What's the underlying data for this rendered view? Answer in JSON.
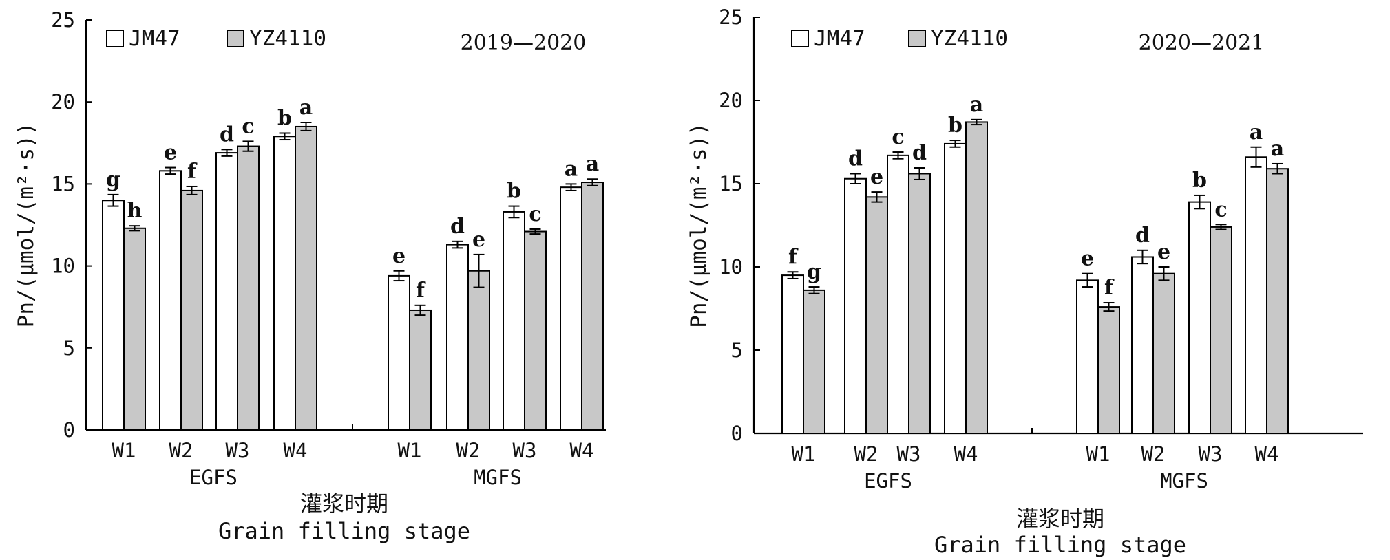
{
  "chart_data": [
    {
      "type": "bar",
      "title": "2019—2020",
      "ylabel": "Pn/(μmol/(m²·s))",
      "xlabel_cn": "灌浆时期",
      "xlabel": "Grain filling stage",
      "ylim": [
        0,
        25
      ],
      "yticks": [
        0,
        5,
        10,
        15,
        20,
        25
      ],
      "groups": [
        {
          "name": "EGFS",
          "categories": [
            "W1",
            "W2",
            "W3",
            "W4"
          ]
        },
        {
          "name": "MGFS",
          "categories": [
            "W1",
            "W2",
            "W3",
            "W4"
          ]
        }
      ],
      "series": [
        {
          "name": "JM47",
          "color": "#ffffff",
          "values": [
            14.0,
            15.8,
            16.9,
            17.9,
            9.4,
            11.3,
            13.3,
            14.8
          ],
          "errors": [
            0.35,
            0.2,
            0.2,
            0.2,
            0.3,
            0.2,
            0.35,
            0.2
          ],
          "letters": [
            "g",
            "e",
            "d",
            "b",
            "e",
            "d",
            "b",
            "a"
          ]
        },
        {
          "name": "YZ4110",
          "color": "#c8c8c8",
          "values": [
            12.3,
            14.6,
            17.3,
            18.5,
            7.3,
            9.7,
            12.1,
            15.1
          ],
          "errors": [
            0.15,
            0.25,
            0.3,
            0.25,
            0.3,
            1.0,
            0.15,
            0.2
          ],
          "letters": [
            "h",
            "f",
            "c",
            "a",
            "f",
            "e",
            "c",
            "a"
          ]
        }
      ]
    },
    {
      "type": "bar",
      "title": "2020—2021",
      "ylabel": "Pn/(μmol/(m²·s))",
      "xlabel_cn": "灌浆时期",
      "xlabel": "Grain filling stage",
      "ylim": [
        0,
        25
      ],
      "yticks": [
        0,
        5,
        10,
        15,
        20,
        25
      ],
      "groups": [
        {
          "name": "EGFS",
          "categories": [
            "W1",
            "W2",
            "W3",
            "W4"
          ]
        },
        {
          "name": "MGFS",
          "categories": [
            "W1",
            "W2",
            "W3",
            "W4"
          ]
        }
      ],
      "series": [
        {
          "name": "JM47",
          "color": "#ffffff",
          "values": [
            9.5,
            15.3,
            16.7,
            17.4,
            9.2,
            10.6,
            13.9,
            16.6
          ],
          "errors": [
            0.2,
            0.3,
            0.2,
            0.2,
            0.4,
            0.4,
            0.4,
            0.6
          ],
          "letters": [
            "f",
            "d",
            "c",
            "b",
            "e",
            "d",
            "b",
            "a"
          ]
        },
        {
          "name": "YZ4110",
          "color": "#c8c8c8",
          "values": [
            8.6,
            14.2,
            15.6,
            18.7,
            7.6,
            9.6,
            12.4,
            15.9
          ],
          "errors": [
            0.2,
            0.3,
            0.35,
            0.15,
            0.25,
            0.4,
            0.15,
            0.3
          ],
          "letters": [
            "g",
            "e",
            "d",
            "a",
            "f",
            "e",
            "c",
            "a"
          ]
        }
      ]
    }
  ]
}
